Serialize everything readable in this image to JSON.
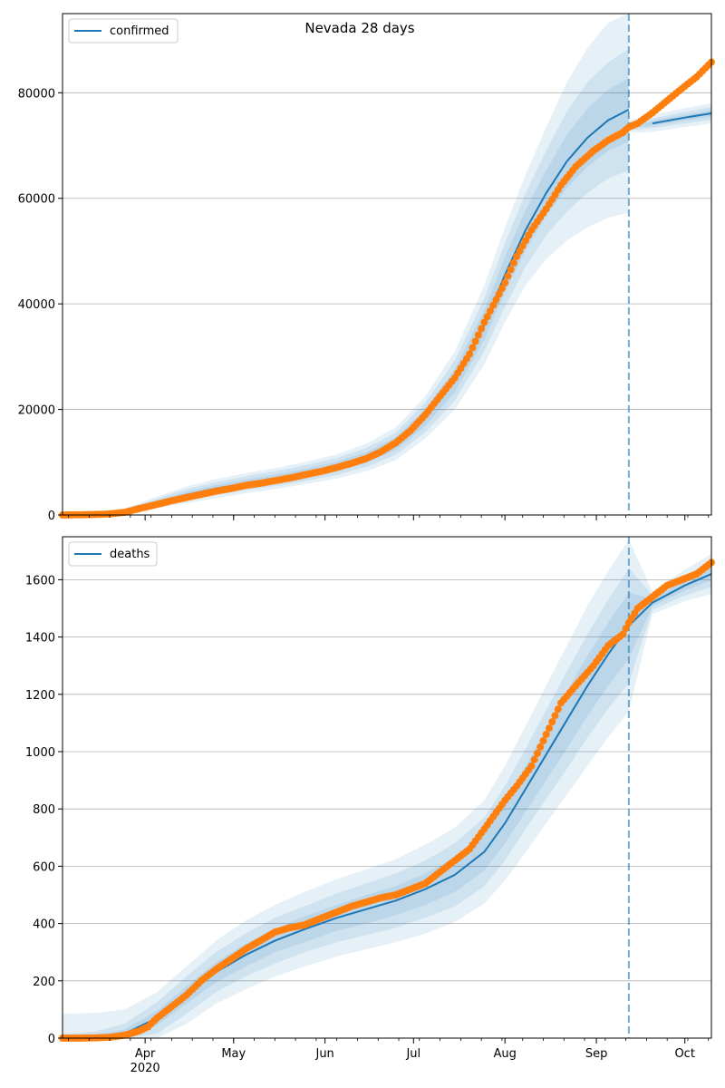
{
  "figure_title": "Nevada 28 days",
  "x_axis": {
    "month_labels": [
      "Apr",
      "May",
      "Jun",
      "Jul",
      "Aug",
      "Sep",
      "Oct"
    ],
    "month_dates": [
      "2020-04-01",
      "2020-05-01",
      "2020-06-01",
      "2020-07-01",
      "2020-08-01",
      "2020-09-01",
      "2020-10-01"
    ],
    "year_label": "2020",
    "range": [
      "2020-03-04",
      "2020-10-10"
    ],
    "forecast_start": "2020-09-12"
  },
  "colors": {
    "model": "#1f77b4",
    "observed": "#ff7f0e",
    "band": "#1f77b4",
    "grid": "#b0b0b0"
  },
  "chart_data": [
    {
      "type": "line",
      "panel": "confirmed",
      "legend": "confirmed",
      "legend_position": "top-left",
      "grid": true,
      "ylim": [
        0,
        95000
      ],
      "yticks": [
        0,
        20000,
        40000,
        60000,
        80000
      ],
      "model_series": {
        "x": [
          "2020-03-04",
          "2020-03-15",
          "2020-03-25",
          "2020-04-05",
          "2020-04-15",
          "2020-04-25",
          "2020-05-05",
          "2020-05-15",
          "2020-05-25",
          "2020-06-05",
          "2020-06-15",
          "2020-06-25",
          "2020-07-05",
          "2020-07-15",
          "2020-07-25",
          "2020-08-01",
          "2020-08-08",
          "2020-08-15",
          "2020-08-22",
          "2020-08-29",
          "2020-09-05",
          "2020-09-12",
          "2020-09-20",
          "2020-10-01",
          "2020-10-10"
        ],
        "y": [
          0,
          200,
          800,
          2400,
          3800,
          5000,
          6000,
          6900,
          7900,
          9200,
          10900,
          13500,
          18500,
          25500,
          36000,
          45500,
          54000,
          61000,
          67000,
          71500,
          74800,
          76800,
          74200,
          75300,
          76100
        ]
      },
      "observed": {
        "x": [
          "2020-03-04",
          "2020-03-10",
          "2020-03-15",
          "2020-03-20",
          "2020-03-25",
          "2020-03-30",
          "2020-04-05",
          "2020-04-10",
          "2020-04-15",
          "2020-04-20",
          "2020-04-25",
          "2020-04-30",
          "2020-05-05",
          "2020-05-10",
          "2020-05-15",
          "2020-05-20",
          "2020-05-25",
          "2020-05-31",
          "2020-06-05",
          "2020-06-10",
          "2020-06-15",
          "2020-06-20",
          "2020-06-25",
          "2020-06-30",
          "2020-07-05",
          "2020-07-10",
          "2020-07-15",
          "2020-07-20",
          "2020-07-25",
          "2020-08-01",
          "2020-08-05",
          "2020-08-10",
          "2020-08-15",
          "2020-08-20",
          "2020-08-25",
          "2020-08-31",
          "2020-09-05",
          "2020-09-10",
          "2020-09-12",
          "2020-09-15",
          "2020-09-20",
          "2020-09-25",
          "2020-09-30",
          "2020-10-05",
          "2020-10-10"
        ],
        "y": [
          0,
          50,
          100,
          200,
          500,
          1200,
          2000,
          2700,
          3300,
          3900,
          4500,
          5000,
          5600,
          6000,
          6500,
          7000,
          7600,
          8300,
          9000,
          9800,
          10700,
          12000,
          13700,
          16000,
          19000,
          22500,
          26000,
          30500,
          36500,
          44000,
          49000,
          54000,
          58000,
          62500,
          66000,
          69000,
          71000,
          72500,
          73500,
          74200,
          76200,
          78500,
          80800,
          83000,
          85800
        ]
      },
      "band_half_widths": {
        "outer": [
          0,
          100,
          400,
          1100,
          1600,
          1800,
          1900,
          2000,
          2100,
          2300,
          2600,
          3100,
          4000,
          5500,
          7500,
          9000,
          10500,
          12500,
          15000,
          17000,
          18500,
          19500,
          0,
          0,
          0
        ],
        "middle": [
          0,
          70,
          250,
          700,
          1100,
          1200,
          1300,
          1400,
          1500,
          1600,
          1800,
          2100,
          2800,
          3800,
          5000,
          6000,
          7000,
          8000,
          9500,
          10500,
          11000,
          11500,
          0,
          0,
          0
        ],
        "inner": [
          0,
          40,
          130,
          350,
          600,
          650,
          700,
          750,
          800,
          900,
          1000,
          1200,
          1600,
          2200,
          2800,
          3300,
          3800,
          4300,
          5000,
          5500,
          5800,
          6000,
          0,
          0,
          0
        ]
      },
      "forecast_band_half_widths": {
        "outer": [
          1200,
          1600,
          1800,
          1900
        ],
        "middle": [
          700,
          900,
          1100,
          1200
        ],
        "inner": [
          300,
          450,
          550,
          600
        ]
      }
    },
    {
      "type": "line",
      "panel": "deaths",
      "legend": "deaths",
      "legend_position": "top-left",
      "grid": true,
      "ylim": [
        0,
        1750
      ],
      "yticks": [
        0,
        200,
        400,
        600,
        800,
        1000,
        1200,
        1400,
        1600
      ],
      "model_series": {
        "x": [
          "2020-03-04",
          "2020-03-15",
          "2020-03-25",
          "2020-04-05",
          "2020-04-15",
          "2020-04-25",
          "2020-05-05",
          "2020-05-15",
          "2020-05-25",
          "2020-06-05",
          "2020-06-15",
          "2020-06-25",
          "2020-07-05",
          "2020-07-15",
          "2020-07-25",
          "2020-08-01",
          "2020-08-08",
          "2020-08-15",
          "2020-08-22",
          "2020-08-29",
          "2020-09-05",
          "2020-09-12",
          "2020-09-20",
          "2020-10-01",
          "2020-10-10"
        ],
        "y": [
          0,
          3,
          15,
          70,
          150,
          230,
          290,
          340,
          380,
          420,
          450,
          480,
          520,
          570,
          650,
          750,
          870,
          990,
          1110,
          1230,
          1340,
          1440,
          1520,
          1580,
          1620
        ]
      },
      "observed": {
        "x": [
          "2020-03-04",
          "2020-03-10",
          "2020-03-15",
          "2020-03-20",
          "2020-03-25",
          "2020-03-30",
          "2020-04-02",
          "2020-04-05",
          "2020-04-10",
          "2020-04-15",
          "2020-04-20",
          "2020-04-25",
          "2020-04-30",
          "2020-05-05",
          "2020-05-10",
          "2020-05-15",
          "2020-05-20",
          "2020-05-25",
          "2020-05-31",
          "2020-06-05",
          "2020-06-10",
          "2020-06-15",
          "2020-06-20",
          "2020-06-25",
          "2020-06-30",
          "2020-07-05",
          "2020-07-10",
          "2020-07-15",
          "2020-07-20",
          "2020-07-25",
          "2020-08-01",
          "2020-08-05",
          "2020-08-10",
          "2020-08-15",
          "2020-08-20",
          "2020-08-25",
          "2020-08-31",
          "2020-09-05",
          "2020-09-10",
          "2020-09-12",
          "2020-09-15",
          "2020-09-20",
          "2020-09-25",
          "2020-09-30",
          "2020-10-05",
          "2020-10-10"
        ],
        "y": [
          0,
          0,
          1,
          3,
          10,
          25,
          40,
          70,
          110,
          150,
          200,
          240,
          275,
          310,
          340,
          370,
          385,
          395,
          420,
          440,
          460,
          475,
          490,
          500,
          520,
          540,
          580,
          620,
          660,
          730,
          830,
          880,
          950,
          1060,
          1170,
          1230,
          1300,
          1370,
          1410,
          1450,
          1500,
          1540,
          1580,
          1600,
          1620,
          1660
        ]
      },
      "band_half_widths": {
        "outer": [
          85,
          85,
          85,
          90,
          100,
          110,
          120,
          125,
          130,
          135,
          140,
          145,
          155,
          165,
          180,
          200,
          220,
          240,
          260,
          280,
          290,
          300,
          40,
          55,
          70
        ],
        "middle": [
          15,
          20,
          35,
          55,
          65,
          70,
          75,
          80,
          80,
          85,
          90,
          95,
          100,
          110,
          120,
          130,
          140,
          155,
          170,
          180,
          190,
          200,
          25,
          35,
          45
        ],
        "inner": [
          5,
          8,
          15,
          25,
          30,
          35,
          40,
          40,
          45,
          45,
          50,
          50,
          55,
          60,
          65,
          70,
          80,
          90,
          100,
          105,
          110,
          115,
          12,
          18,
          22
        ]
      }
    }
  ]
}
